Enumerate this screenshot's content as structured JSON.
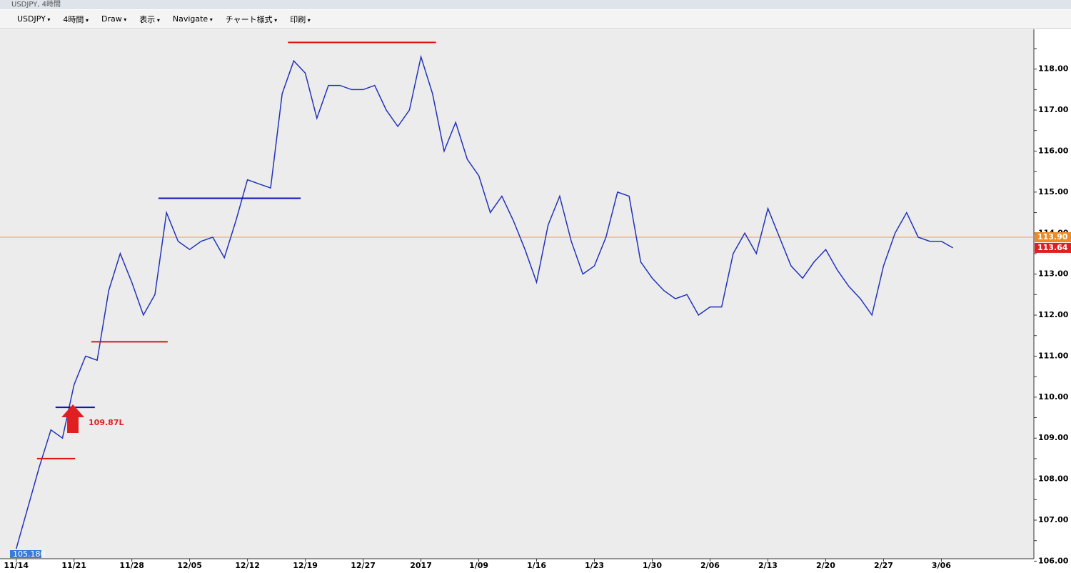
{
  "window": {
    "title": "USDJPY, 4時間"
  },
  "toolbar": {
    "symbol": "USDJPY",
    "timeframe": "4時間",
    "draw": "Draw",
    "view": "表示",
    "navigate": "Navigate",
    "chart_style": "チャート様式",
    "print": "印刷"
  },
  "chart_data": {
    "type": "line",
    "color": "#2233bb",
    "x": [
      0,
      1,
      2,
      3,
      4,
      5,
      6,
      7,
      8,
      9,
      10,
      11,
      12,
      13,
      14,
      15,
      16,
      17,
      18,
      19,
      20,
      21,
      22,
      23,
      24,
      25,
      26,
      27,
      28,
      29,
      30,
      31,
      32,
      33,
      34,
      35,
      36,
      37,
      38,
      39,
      40,
      41,
      42,
      43,
      44,
      45,
      46,
      47,
      48,
      49,
      50,
      51,
      52,
      53,
      54,
      55,
      56,
      57,
      58,
      59,
      60,
      61,
      62,
      63,
      64,
      65,
      66,
      67,
      68,
      69,
      70,
      71,
      72,
      73,
      74,
      75,
      76,
      77,
      78,
      79,
      80,
      81
    ],
    "values": [
      106.3,
      107.3,
      108.3,
      109.2,
      109.0,
      110.3,
      111.0,
      110.9,
      112.6,
      113.5,
      112.8,
      112.0,
      112.5,
      114.5,
      113.8,
      113.6,
      113.8,
      113.9,
      113.4,
      114.3,
      115.3,
      115.2,
      115.1,
      117.4,
      118.2,
      117.9,
      116.8,
      117.6,
      117.6,
      117.5,
      117.5,
      117.6,
      117.0,
      116.6,
      117.0,
      118.3,
      117.4,
      116.0,
      116.7,
      115.8,
      115.4,
      114.5,
      114.9,
      114.3,
      113.6,
      112.8,
      114.2,
      114.9,
      113.8,
      113.0,
      113.2,
      113.9,
      115.0,
      114.9,
      113.3,
      112.9,
      112.6,
      112.4,
      112.5,
      112.0,
      112.2,
      112.2,
      113.5,
      114.0,
      113.5,
      114.6,
      113.9,
      113.2,
      112.9,
      113.3,
      113.6,
      113.1,
      112.7,
      112.4,
      112.0,
      113.2,
      114.0,
      114.5,
      113.9,
      113.8,
      113.8,
      113.64
    ],
    "xlim": [
      -1.4,
      88
    ],
    "xticks": [
      {
        "value": 0,
        "label": "11/14"
      },
      {
        "value": 5,
        "label": "11/21"
      },
      {
        "value": 10,
        "label": "11/28"
      },
      {
        "value": 15,
        "label": "12/05"
      },
      {
        "value": 20,
        "label": "12/12"
      },
      {
        "value": 25,
        "label": "12/19"
      },
      {
        "value": 30,
        "label": "12/27"
      },
      {
        "value": 35,
        "label": "2017"
      },
      {
        "value": 40,
        "label": "1/09"
      },
      {
        "value": 45,
        "label": "1/16"
      },
      {
        "value": 50,
        "label": "1/23"
      },
      {
        "value": 55,
        "label": "1/30"
      },
      {
        "value": 60,
        "label": "2/06"
      },
      {
        "value": 65,
        "label": "2/13"
      },
      {
        "value": 70,
        "label": "2/20"
      },
      {
        "value": 75,
        "label": "2/27"
      },
      {
        "value": 80,
        "label": "3/06"
      }
    ],
    "ylim": [
      105.92,
      118.97
    ],
    "yticks": [
      {
        "value": 106,
        "label": "106.00"
      },
      106.5,
      {
        "value": 107,
        "label": "107.00"
      },
      107.5,
      {
        "value": 108,
        "label": "108.00"
      },
      108.5,
      {
        "value": 109,
        "label": "109.00"
      },
      109.5,
      {
        "value": 110,
        "label": "110.00"
      },
      110.5,
      {
        "value": 111,
        "label": "111.00"
      },
      111.5,
      {
        "value": 112,
        "label": "112.00"
      },
      112.5,
      {
        "value": 113,
        "label": "113.00"
      },
      113.5,
      {
        "value": 114,
        "label": "114.00"
      },
      114.5,
      {
        "value": 115,
        "label": "115.00"
      },
      115.5,
      {
        "value": 116,
        "label": "116.00"
      },
      116.5,
      {
        "value": 117,
        "label": "117.00"
      },
      117.5,
      {
        "value": 118,
        "label": "118.00"
      },
      118.5
    ],
    "levels": [
      {
        "value": 118.65,
        "from": 23.5,
        "to": 36.3,
        "color": "#e01010"
      },
      {
        "value": 114.85,
        "from": 12.3,
        "to": 24.6,
        "color": "#1010c0"
      },
      {
        "value": 111.35,
        "from": 6.5,
        "to": 13.1,
        "color": "#e01010"
      },
      {
        "value": 109.75,
        "from": 3.4,
        "to": 6.8,
        "color": "#1010c0"
      },
      {
        "value": 108.5,
        "from": 1.8,
        "to": 5.1,
        "color": "#e01010"
      }
    ],
    "hline": {
      "value": 113.9,
      "color": "#e8a060"
    },
    "price_tags": [
      {
        "value": 113.9,
        "label": "113.90",
        "color": "#f08a20"
      },
      {
        "value": 113.64,
        "label": "113.64",
        "color": "#e02020"
      }
    ],
    "annotation": {
      "text": "109.87L",
      "x": 4.9,
      "y": 109.3,
      "color": "#e02020"
    },
    "badge": "105.180"
  }
}
